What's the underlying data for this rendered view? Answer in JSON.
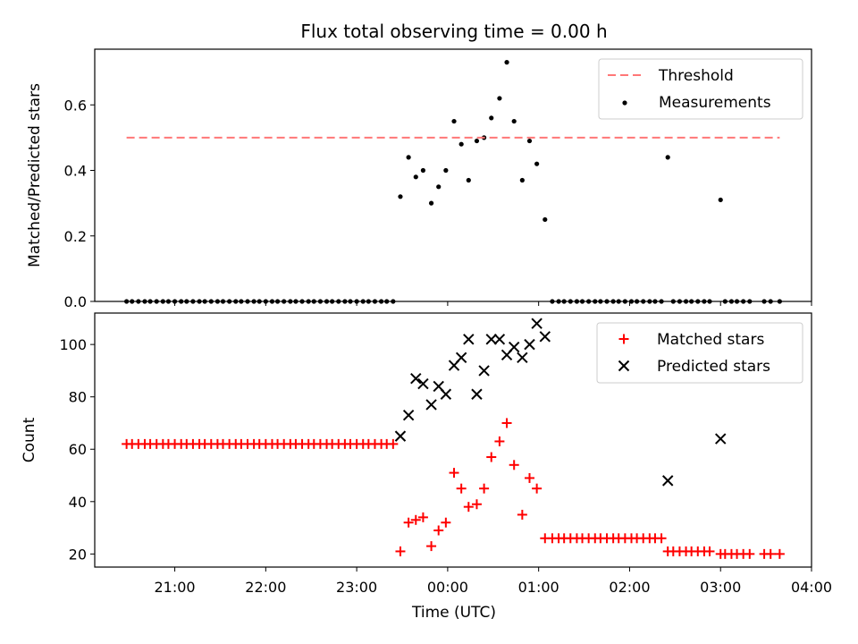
{
  "title": "Flux total observing time = 0.00 h",
  "xlabel": "Time (UTC)",
  "x_tick_labels": [
    "21:00",
    "22:00",
    "23:00",
    "00:00",
    "01:00",
    "02:00",
    "03:00",
    "04:00"
  ],
  "colors": {
    "threshold": "#ff7777",
    "measurement": "#000000",
    "matched": "#ff0000",
    "predicted": "#000000"
  },
  "chart_data": [
    {
      "type": "scatter",
      "ylabel": "Matched/Predicted stars",
      "ylim": [
        0,
        0.77
      ],
      "y_ticks": [
        0.0,
        0.2,
        0.4,
        0.6
      ],
      "y_tick_labels": [
        "0.0",
        "0.2",
        "0.4",
        "0.6"
      ],
      "xlim_hours": [
        20.12,
        28.0
      ],
      "legend": {
        "placement": "top-right",
        "entries": [
          "Threshold",
          "Measurements"
        ]
      },
      "threshold": {
        "name": "Threshold",
        "value": 0.5,
        "x_range": [
          20.47,
          27.65
        ],
        "style": "dashed"
      },
      "series": [
        {
          "name": "Measurements",
          "marker": "dot",
          "points": [
            [
              20.47,
              0
            ],
            [
              20.53,
              0
            ],
            [
              20.6,
              0
            ],
            [
              20.67,
              0
            ],
            [
              20.73,
              0
            ],
            [
              20.8,
              0
            ],
            [
              20.87,
              0
            ],
            [
              20.93,
              0
            ],
            [
              21.0,
              0
            ],
            [
              21.07,
              0
            ],
            [
              21.13,
              0
            ],
            [
              21.2,
              0
            ],
            [
              21.27,
              0
            ],
            [
              21.33,
              0
            ],
            [
              21.4,
              0
            ],
            [
              21.47,
              0
            ],
            [
              21.53,
              0
            ],
            [
              21.6,
              0
            ],
            [
              21.67,
              0
            ],
            [
              21.73,
              0
            ],
            [
              21.8,
              0
            ],
            [
              21.87,
              0
            ],
            [
              21.93,
              0
            ],
            [
              22.0,
              0
            ],
            [
              22.07,
              0
            ],
            [
              22.13,
              0
            ],
            [
              22.2,
              0
            ],
            [
              22.27,
              0
            ],
            [
              22.33,
              0
            ],
            [
              22.4,
              0
            ],
            [
              22.47,
              0
            ],
            [
              22.53,
              0
            ],
            [
              22.6,
              0
            ],
            [
              22.67,
              0
            ],
            [
              22.73,
              0
            ],
            [
              22.8,
              0
            ],
            [
              22.87,
              0
            ],
            [
              22.93,
              0
            ],
            [
              23.0,
              0
            ],
            [
              23.07,
              0
            ],
            [
              23.13,
              0
            ],
            [
              23.2,
              0
            ],
            [
              23.27,
              0
            ],
            [
              23.33,
              0
            ],
            [
              23.4,
              0
            ],
            [
              23.48,
              0.32
            ],
            [
              23.57,
              0.44
            ],
            [
              23.65,
              0.38
            ],
            [
              23.73,
              0.4
            ],
            [
              23.82,
              0.3
            ],
            [
              23.9,
              0.35
            ],
            [
              23.98,
              0.4
            ],
            [
              24.07,
              0.55
            ],
            [
              24.15,
              0.48
            ],
            [
              24.23,
              0.37
            ],
            [
              24.32,
              0.49
            ],
            [
              24.4,
              0.5
            ],
            [
              24.48,
              0.56
            ],
            [
              24.57,
              0.62
            ],
            [
              24.65,
              0.73
            ],
            [
              24.73,
              0.55
            ],
            [
              24.82,
              0.37
            ],
            [
              24.9,
              0.49
            ],
            [
              24.98,
              0.42
            ],
            [
              25.07,
              0.25
            ],
            [
              25.15,
              0
            ],
            [
              25.22,
              0
            ],
            [
              25.28,
              0
            ],
            [
              25.35,
              0
            ],
            [
              25.42,
              0
            ],
            [
              25.48,
              0
            ],
            [
              25.55,
              0
            ],
            [
              25.62,
              0
            ],
            [
              25.68,
              0
            ],
            [
              25.75,
              0
            ],
            [
              25.82,
              0
            ],
            [
              25.88,
              0
            ],
            [
              25.95,
              0
            ],
            [
              26.02,
              0
            ],
            [
              26.08,
              0
            ],
            [
              26.15,
              0
            ],
            [
              26.22,
              0
            ],
            [
              26.28,
              0
            ],
            [
              26.35,
              0
            ],
            [
              26.42,
              0.44
            ],
            [
              26.48,
              0
            ],
            [
              26.55,
              0
            ],
            [
              26.62,
              0
            ],
            [
              26.68,
              0
            ],
            [
              26.75,
              0
            ],
            [
              26.82,
              0
            ],
            [
              26.88,
              0
            ],
            [
              27.0,
              0.31
            ],
            [
              27.05,
              0
            ],
            [
              27.12,
              0
            ],
            [
              27.18,
              0
            ],
            [
              27.25,
              0
            ],
            [
              27.32,
              0
            ],
            [
              27.48,
              0
            ],
            [
              27.55,
              0
            ],
            [
              27.65,
              0
            ]
          ]
        }
      ]
    },
    {
      "type": "scatter",
      "ylabel": "Count",
      "ylim": [
        15,
        112
      ],
      "y_ticks": [
        20,
        40,
        60,
        80,
        100
      ],
      "y_tick_labels": [
        "20",
        "40",
        "60",
        "80",
        "100"
      ],
      "xlim_hours": [
        20.12,
        28.0
      ],
      "legend": {
        "placement": "top-right",
        "entries": [
          "Matched stars",
          "Predicted stars"
        ]
      },
      "series": [
        {
          "name": "Matched stars",
          "marker": "plus",
          "points": [
            [
              20.47,
              62
            ],
            [
              20.53,
              62
            ],
            [
              20.6,
              62
            ],
            [
              20.67,
              62
            ],
            [
              20.73,
              62
            ],
            [
              20.8,
              62
            ],
            [
              20.87,
              62
            ],
            [
              20.93,
              62
            ],
            [
              21.0,
              62
            ],
            [
              21.07,
              62
            ],
            [
              21.13,
              62
            ],
            [
              21.2,
              62
            ],
            [
              21.27,
              62
            ],
            [
              21.33,
              62
            ],
            [
              21.4,
              62
            ],
            [
              21.47,
              62
            ],
            [
              21.53,
              62
            ],
            [
              21.6,
              62
            ],
            [
              21.67,
              62
            ],
            [
              21.73,
              62
            ],
            [
              21.8,
              62
            ],
            [
              21.87,
              62
            ],
            [
              21.93,
              62
            ],
            [
              22.0,
              62
            ],
            [
              22.07,
              62
            ],
            [
              22.13,
              62
            ],
            [
              22.2,
              62
            ],
            [
              22.27,
              62
            ],
            [
              22.33,
              62
            ],
            [
              22.4,
              62
            ],
            [
              22.47,
              62
            ],
            [
              22.53,
              62
            ],
            [
              22.6,
              62
            ],
            [
              22.67,
              62
            ],
            [
              22.73,
              62
            ],
            [
              22.8,
              62
            ],
            [
              22.87,
              62
            ],
            [
              22.93,
              62
            ],
            [
              23.0,
              62
            ],
            [
              23.07,
              62
            ],
            [
              23.13,
              62
            ],
            [
              23.2,
              62
            ],
            [
              23.27,
              62
            ],
            [
              23.33,
              62
            ],
            [
              23.4,
              62
            ],
            [
              23.48,
              21
            ],
            [
              23.57,
              32
            ],
            [
              23.65,
              33
            ],
            [
              23.73,
              34
            ],
            [
              23.82,
              23
            ],
            [
              23.9,
              29
            ],
            [
              23.98,
              32
            ],
            [
              24.07,
              51
            ],
            [
              24.15,
              45
            ],
            [
              24.23,
              38
            ],
            [
              24.32,
              39
            ],
            [
              24.4,
              45
            ],
            [
              24.48,
              57
            ],
            [
              24.57,
              63
            ],
            [
              24.65,
              70
            ],
            [
              24.73,
              54
            ],
            [
              24.82,
              35
            ],
            [
              24.9,
              49
            ],
            [
              24.98,
              45
            ],
            [
              25.07,
              26
            ],
            [
              25.15,
              26
            ],
            [
              25.22,
              26
            ],
            [
              25.28,
              26
            ],
            [
              25.35,
              26
            ],
            [
              25.42,
              26
            ],
            [
              25.48,
              26
            ],
            [
              25.55,
              26
            ],
            [
              25.62,
              26
            ],
            [
              25.68,
              26
            ],
            [
              25.75,
              26
            ],
            [
              25.82,
              26
            ],
            [
              25.88,
              26
            ],
            [
              25.95,
              26
            ],
            [
              26.02,
              26
            ],
            [
              26.08,
              26
            ],
            [
              26.15,
              26
            ],
            [
              26.22,
              26
            ],
            [
              26.28,
              26
            ],
            [
              26.35,
              26
            ],
            [
              26.42,
              21
            ],
            [
              26.48,
              21
            ],
            [
              26.55,
              21
            ],
            [
              26.62,
              21
            ],
            [
              26.68,
              21
            ],
            [
              26.75,
              21
            ],
            [
              26.82,
              21
            ],
            [
              26.88,
              21
            ],
            [
              27.0,
              20
            ],
            [
              27.05,
              20
            ],
            [
              27.12,
              20
            ],
            [
              27.18,
              20
            ],
            [
              27.25,
              20
            ],
            [
              27.32,
              20
            ],
            [
              27.48,
              20
            ],
            [
              27.55,
              20
            ],
            [
              27.65,
              20
            ]
          ]
        },
        {
          "name": "Predicted stars",
          "marker": "x",
          "points": [
            [
              23.48,
              65
            ],
            [
              23.57,
              73
            ],
            [
              23.65,
              87
            ],
            [
              23.73,
              85
            ],
            [
              23.82,
              77
            ],
            [
              23.9,
              84
            ],
            [
              23.98,
              81
            ],
            [
              24.07,
              92
            ],
            [
              24.15,
              95
            ],
            [
              24.23,
              102
            ],
            [
              24.32,
              81
            ],
            [
              24.4,
              90
            ],
            [
              24.48,
              102
            ],
            [
              24.57,
              102
            ],
            [
              24.65,
              96
            ],
            [
              24.73,
              99
            ],
            [
              24.82,
              95
            ],
            [
              24.9,
              100
            ],
            [
              24.98,
              108
            ],
            [
              25.07,
              103
            ],
            [
              26.42,
              48
            ],
            [
              27.0,
              64
            ]
          ]
        }
      ]
    }
  ]
}
